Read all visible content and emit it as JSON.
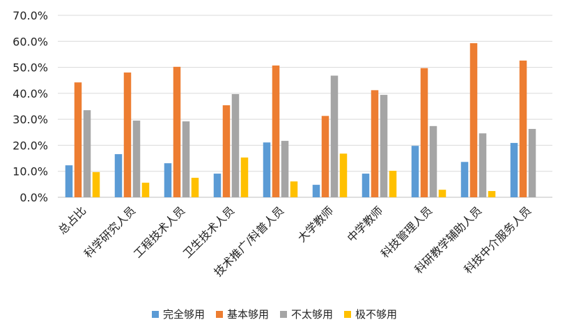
{
  "chart_data": {
    "type": "bar",
    "title": "",
    "xlabel": "",
    "ylabel": "",
    "ylim": [
      0,
      70
    ],
    "yticks": [
      "0.0%",
      "10.0%",
      "20.0%",
      "30.0%",
      "40.0%",
      "50.0%",
      "60.0%",
      "70.0%"
    ],
    "grid": true,
    "legend_position": "bottom",
    "categories": [
      "总占比",
      "科学研究人员",
      "工程技术人员",
      "卫生技术人员",
      "技术推广/科普人员",
      "大学教师",
      "中学教师",
      "科技管理人员",
      "科研教学辅助人员",
      "科技中介服务人员"
    ],
    "series": [
      {
        "name": "完全够用",
        "color": "#5B9BD5",
        "values": [
          12.3,
          16.6,
          13.1,
          9.1,
          21.1,
          4.8,
          9.1,
          19.8,
          13.6,
          20.9
        ]
      },
      {
        "name": "基本够用",
        "color": "#ED7D31",
        "values": [
          44.2,
          48.0,
          50.2,
          35.4,
          50.7,
          31.3,
          41.2,
          49.7,
          59.3,
          52.6
        ]
      },
      {
        "name": "不太够用",
        "color": "#A5A5A5",
        "values": [
          33.5,
          29.5,
          29.2,
          39.7,
          21.7,
          46.8,
          39.4,
          27.4,
          24.6,
          26.3
        ]
      },
      {
        "name": "极不够用",
        "color": "#FFC000",
        "values": [
          9.7,
          5.6,
          7.5,
          15.3,
          6.1,
          16.8,
          10.2,
          2.9,
          2.4,
          0.0
        ]
      }
    ]
  }
}
